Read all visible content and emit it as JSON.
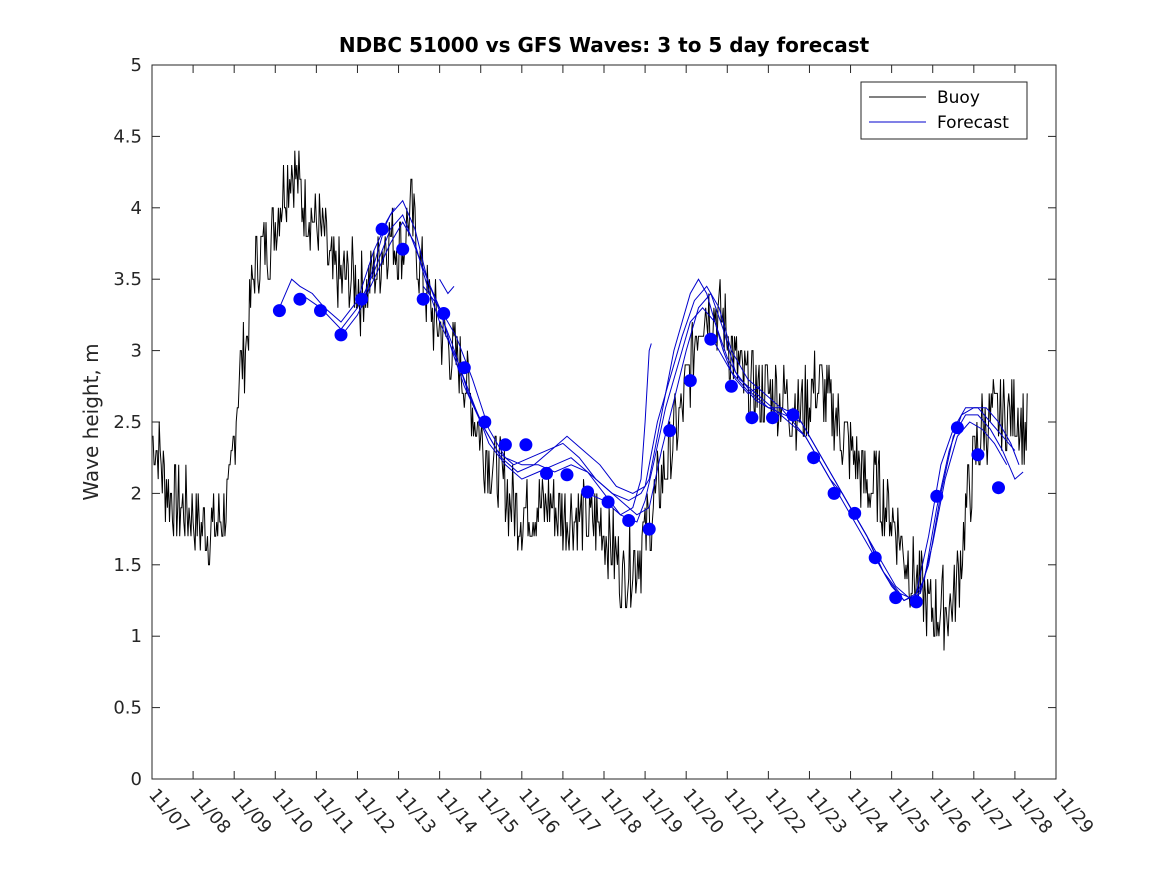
{
  "chart_data": {
    "type": "line",
    "title": "NDBC 51000 vs GFS Waves: 3 to 5 day forecast",
    "xlabel": "",
    "ylabel": "Wave height, m",
    "xlim": [
      0,
      22
    ],
    "ylim": [
      0,
      5
    ],
    "y_ticks": [
      0,
      0.5,
      1,
      1.5,
      2,
      2.5,
      3,
      3.5,
      4,
      4.5,
      5
    ],
    "y_tick_labels": [
      "0",
      "0.5",
      "1",
      "1.5",
      "2",
      "2.5",
      "3",
      "3.5",
      "4",
      "4.5",
      "5"
    ],
    "x_tick_labels": [
      "11/07",
      "11/08",
      "11/09",
      "11/10",
      "11/11",
      "11/12",
      "11/13",
      "11/14",
      "11/15",
      "11/16",
      "11/17",
      "11/18",
      "11/19",
      "11/20",
      "11/21",
      "11/22",
      "11/23",
      "11/24",
      "11/25",
      "11/26",
      "11/27",
      "11/28",
      "11/29"
    ],
    "x_unit": "days since 11/07",
    "legend": {
      "position": "top-right",
      "entries": [
        "Buoy",
        "Forecast"
      ]
    },
    "colors": {
      "buoy": "#000000",
      "forecast": "#0000cc",
      "markers": "#0000ff"
    },
    "buoy_anchors": [
      [
        0,
        2.4
      ],
      [
        0.15,
        2.3
      ],
      [
        0.3,
        2.1
      ],
      [
        0.5,
        1.95
      ],
      [
        0.8,
        1.9
      ],
      [
        1.1,
        1.8
      ],
      [
        1.4,
        1.75
      ],
      [
        1.7,
        1.8
      ],
      [
        1.9,
        2.0
      ],
      [
        2.0,
        2.4
      ],
      [
        2.1,
        2.8
      ],
      [
        2.25,
        3.0
      ],
      [
        2.4,
        3.3
      ],
      [
        2.5,
        3.6
      ],
      [
        2.7,
        3.7
      ],
      [
        2.9,
        3.8
      ],
      [
        3.1,
        4.0
      ],
      [
        3.25,
        4.2
      ],
      [
        3.4,
        4.3
      ],
      [
        3.6,
        4.1
      ],
      [
        3.8,
        4.0
      ],
      [
        4.0,
        3.9
      ],
      [
        4.2,
        3.8
      ],
      [
        4.4,
        3.5
      ],
      [
        4.7,
        3.5
      ],
      [
        4.9,
        3.5
      ],
      [
        5.1,
        3.4
      ],
      [
        5.3,
        3.5
      ],
      [
        5.5,
        3.6
      ],
      [
        5.7,
        3.8
      ],
      [
        5.9,
        3.8
      ],
      [
        6.1,
        3.7
      ],
      [
        6.3,
        4.0
      ],
      [
        6.5,
        3.6
      ],
      [
        6.7,
        3.4
      ],
      [
        6.9,
        3.2
      ],
      [
        7.1,
        3.1
      ],
      [
        7.3,
        3.0
      ],
      [
        7.5,
        2.9
      ],
      [
        7.7,
        2.7
      ],
      [
        7.9,
        2.5
      ],
      [
        8.1,
        2.3
      ],
      [
        8.3,
        2.2
      ],
      [
        8.5,
        2.1
      ],
      [
        8.7,
        1.95
      ],
      [
        8.9,
        1.85
      ],
      [
        9.1,
        1.9
      ],
      [
        9.4,
        1.9
      ],
      [
        9.7,
        1.9
      ],
      [
        10.0,
        1.85
      ],
      [
        10.3,
        1.85
      ],
      [
        10.6,
        1.8
      ],
      [
        10.9,
        1.8
      ],
      [
        11.1,
        1.7
      ],
      [
        11.3,
        1.55
      ],
      [
        11.45,
        1.4
      ],
      [
        11.6,
        1.5
      ],
      [
        11.75,
        1.55
      ],
      [
        11.9,
        1.6
      ],
      [
        12.1,
        1.8
      ],
      [
        12.3,
        2.0
      ],
      [
        12.5,
        2.2
      ],
      [
        12.7,
        2.4
      ],
      [
        12.9,
        2.6
      ],
      [
        13.1,
        2.9
      ],
      [
        13.3,
        3.2
      ],
      [
        13.5,
        3.3
      ],
      [
        13.7,
        3.3
      ],
      [
        13.9,
        3.2
      ],
      [
        14.1,
        3.0
      ],
      [
        14.3,
        2.85
      ],
      [
        14.5,
        2.75
      ],
      [
        14.8,
        2.7
      ],
      [
        15.1,
        2.7
      ],
      [
        15.4,
        2.65
      ],
      [
        15.7,
        2.6
      ],
      [
        15.9,
        2.6
      ],
      [
        16.1,
        2.75
      ],
      [
        16.3,
        2.7
      ],
      [
        16.5,
        2.6
      ],
      [
        16.7,
        2.5
      ],
      [
        16.9,
        2.35
      ],
      [
        17.1,
        2.25
      ],
      [
        17.3,
        2.1
      ],
      [
        17.5,
        2.05
      ],
      [
        17.7,
        2.0
      ],
      [
        17.9,
        1.9
      ],
      [
        18.1,
        1.8
      ],
      [
        18.3,
        1.6
      ],
      [
        18.5,
        1.45
      ],
      [
        18.7,
        1.3
      ],
      [
        18.9,
        1.2
      ],
      [
        19.1,
        1.2
      ],
      [
        19.3,
        1.2
      ],
      [
        19.5,
        1.25
      ],
      [
        19.65,
        1.5
      ],
      [
        19.8,
        1.85
      ],
      [
        20.0,
        2.2
      ],
      [
        20.2,
        2.45
      ],
      [
        20.4,
        2.55
      ],
      [
        20.6,
        2.5
      ],
      [
        20.8,
        2.55
      ],
      [
        21.0,
        2.6
      ],
      [
        21.15,
        2.5
      ],
      [
        21.3,
        2.4
      ]
    ],
    "forecast_points": [
      [
        3.1,
        3.28
      ],
      [
        3.6,
        3.36
      ],
      [
        4.1,
        3.28
      ],
      [
        4.6,
        3.11
      ],
      [
        5.1,
        3.36
      ],
      [
        5.6,
        3.85
      ],
      [
        6.1,
        3.71
      ],
      [
        6.6,
        3.36
      ],
      [
        7.1,
        3.26
      ],
      [
        7.6,
        2.88
      ],
      [
        8.1,
        2.5
      ],
      [
        8.6,
        2.34
      ],
      [
        9.1,
        2.34
      ],
      [
        9.6,
        2.14
      ],
      [
        10.1,
        2.13
      ],
      [
        10.6,
        2.01
      ],
      [
        11.1,
        1.94
      ],
      [
        11.6,
        1.81
      ],
      [
        12.1,
        1.75
      ],
      [
        12.6,
        2.44
      ],
      [
        13.1,
        2.79
      ],
      [
        13.6,
        3.08
      ],
      [
        14.1,
        2.75
      ],
      [
        14.6,
        2.53
      ],
      [
        15.1,
        2.53
      ],
      [
        15.6,
        2.55
      ],
      [
        16.1,
        2.25
      ],
      [
        16.6,
        2.0
      ],
      [
        17.1,
        1.86
      ],
      [
        17.6,
        1.55
      ],
      [
        18.1,
        1.27
      ],
      [
        18.6,
        1.24
      ],
      [
        19.1,
        1.98
      ],
      [
        19.6,
        2.46
      ],
      [
        20.1,
        2.27
      ],
      [
        20.6,
        2.04
      ]
    ],
    "forecast_lines": [
      [
        [
          3.1,
          3.3
        ],
        [
          3.4,
          3.5
        ],
        [
          3.6,
          3.45
        ],
        [
          3.9,
          3.4
        ],
        [
          4.2,
          3.3
        ],
        [
          4.6,
          3.2
        ],
        [
          5.0,
          3.35
        ],
        [
          5.4,
          3.7
        ],
        [
          5.8,
          3.95
        ],
        [
          6.1,
          4.05
        ],
        [
          6.4,
          3.85
        ],
        [
          6.7,
          3.5
        ],
        [
          7.0,
          3.3
        ],
        [
          7.3,
          3.0
        ],
        [
          7.6,
          2.75
        ],
        [
          8.0,
          2.5
        ],
        [
          8.4,
          2.3
        ],
        [
          8.8,
          2.2
        ],
        [
          9.2,
          2.25
        ],
        [
          9.6,
          2.3
        ],
        [
          10.0,
          2.35
        ],
        [
          10.4,
          2.25
        ],
        [
          10.8,
          2.1
        ],
        [
          11.2,
          2.0
        ],
        [
          11.6,
          1.95
        ],
        [
          11.9,
          2.0
        ],
        [
          12.1,
          2.1
        ],
        [
          12.3,
          2.4
        ],
        [
          12.5,
          2.7
        ],
        [
          12.7,
          3.0
        ],
        [
          12.9,
          3.2
        ],
        [
          13.1,
          3.4
        ],
        [
          13.3,
          3.5
        ],
        [
          13.5,
          3.4
        ],
        [
          13.7,
          3.2
        ],
        [
          13.9,
          3.0
        ],
        [
          14.1,
          2.85
        ],
        [
          14.4,
          2.75
        ],
        [
          14.7,
          2.65
        ],
        [
          15.0,
          2.6
        ],
        [
          15.3,
          2.6
        ],
        [
          15.6,
          2.5
        ],
        [
          15.9,
          2.4
        ],
        [
          16.2,
          2.25
        ],
        [
          16.5,
          2.1
        ],
        [
          16.8,
          2.0
        ],
        [
          17.1,
          1.85
        ],
        [
          17.4,
          1.7
        ],
        [
          17.7,
          1.5
        ],
        [
          18.0,
          1.35
        ],
        [
          18.3,
          1.25
        ],
        [
          18.6,
          1.3
        ],
        [
          18.9,
          1.7
        ],
        [
          19.2,
          2.2
        ],
        [
          19.5,
          2.45
        ],
        [
          19.8,
          2.6
        ],
        [
          20.1,
          2.6
        ],
        [
          20.4,
          2.5
        ],
        [
          20.7,
          2.4
        ],
        [
          21.0,
          2.3
        ]
      ],
      [
        [
          3.6,
          3.4
        ],
        [
          4.1,
          3.3
        ],
        [
          4.6,
          3.15
        ],
        [
          5.0,
          3.3
        ],
        [
          5.4,
          3.55
        ],
        [
          5.8,
          3.85
        ],
        [
          6.1,
          3.95
        ],
        [
          6.5,
          3.65
        ],
        [
          6.9,
          3.35
        ],
        [
          7.3,
          3.05
        ],
        [
          7.7,
          2.7
        ],
        [
          8.1,
          2.45
        ],
        [
          8.5,
          2.25
        ],
        [
          8.9,
          2.15
        ],
        [
          9.3,
          2.2
        ],
        [
          9.7,
          2.3
        ],
        [
          10.1,
          2.4
        ],
        [
          10.5,
          2.3
        ],
        [
          10.9,
          2.2
        ],
        [
          11.3,
          2.05
        ],
        [
          11.7,
          2.0
        ],
        [
          12.0,
          2.05
        ],
        [
          12.3,
          2.5
        ],
        [
          12.6,
          2.8
        ],
        [
          12.9,
          3.1
        ],
        [
          13.2,
          3.35
        ],
        [
          13.5,
          3.45
        ],
        [
          13.8,
          3.3
        ],
        [
          14.1,
          3.0
        ],
        [
          14.5,
          2.8
        ],
        [
          14.9,
          2.7
        ],
        [
          15.3,
          2.6
        ],
        [
          15.7,
          2.55
        ],
        [
          16.1,
          2.35
        ],
        [
          16.5,
          2.15
        ],
        [
          16.9,
          1.95
        ],
        [
          17.3,
          1.75
        ],
        [
          17.7,
          1.55
        ],
        [
          18.1,
          1.35
        ],
        [
          18.5,
          1.25
        ],
        [
          18.8,
          1.4
        ],
        [
          19.1,
          1.9
        ],
        [
          19.4,
          2.3
        ],
        [
          19.7,
          2.55
        ],
        [
          20.0,
          2.6
        ],
        [
          20.3,
          2.6
        ],
        [
          20.6,
          2.5
        ],
        [
          20.9,
          2.35
        ],
        [
          21.1,
          2.2
        ]
      ],
      [
        [
          4.6,
          3.1
        ],
        [
          5.0,
          3.25
        ],
        [
          5.4,
          3.5
        ],
        [
          5.8,
          3.75
        ],
        [
          6.1,
          3.9
        ],
        [
          6.4,
          3.75
        ],
        [
          6.7,
          3.45
        ],
        [
          7.0,
          3.2
        ],
        [
          7.4,
          2.95
        ],
        [
          7.8,
          2.65
        ],
        [
          8.2,
          2.35
        ],
        [
          8.6,
          2.2
        ],
        [
          9.0,
          2.1
        ],
        [
          9.4,
          2.15
        ],
        [
          9.8,
          2.2
        ],
        [
          10.2,
          2.25
        ],
        [
          10.6,
          2.15
        ],
        [
          11.0,
          2.05
        ],
        [
          11.4,
          1.95
        ],
        [
          11.8,
          1.85
        ],
        [
          12.1,
          1.9
        ],
        [
          12.4,
          2.3
        ],
        [
          12.7,
          2.65
        ],
        [
          13.0,
          3.0
        ],
        [
          13.3,
          3.3
        ],
        [
          13.6,
          3.4
        ],
        [
          13.9,
          3.15
        ],
        [
          14.2,
          2.85
        ],
        [
          14.6,
          2.7
        ],
        [
          15.0,
          2.6
        ],
        [
          15.4,
          2.55
        ],
        [
          15.8,
          2.5
        ],
        [
          16.2,
          2.3
        ],
        [
          16.6,
          2.1
        ],
        [
          17.0,
          1.9
        ],
        [
          17.4,
          1.7
        ],
        [
          17.8,
          1.45
        ],
        [
          18.2,
          1.3
        ],
        [
          18.6,
          1.25
        ],
        [
          18.9,
          1.5
        ],
        [
          19.2,
          2.0
        ],
        [
          19.5,
          2.4
        ],
        [
          19.8,
          2.55
        ],
        [
          20.1,
          2.55
        ],
        [
          20.4,
          2.45
        ],
        [
          20.7,
          2.3
        ],
        [
          21.0,
          2.1
        ],
        [
          21.2,
          2.15
        ]
      ],
      [
        [
          6.6,
          3.45
        ],
        [
          7.0,
          3.3
        ],
        [
          7.4,
          3.1
        ],
        [
          7.8,
          2.8
        ],
        [
          8.2,
          2.45
        ],
        [
          8.6,
          2.25
        ],
        [
          9.0,
          2.2
        ],
        [
          9.4,
          2.2
        ],
        [
          9.8,
          2.15
        ],
        [
          10.2,
          2.2
        ],
        [
          10.6,
          2.15
        ],
        [
          11.0,
          2.0
        ],
        [
          11.4,
          1.85
        ],
        [
          11.8,
          1.8
        ],
        [
          12.0,
          1.95
        ],
        [
          12.2,
          2.2
        ],
        [
          12.5,
          2.6
        ],
        [
          12.8,
          2.9
        ],
        [
          13.1,
          3.2
        ],
        [
          13.4,
          3.3
        ],
        [
          13.7,
          3.2
        ],
        [
          14.0,
          2.95
        ],
        [
          14.3,
          2.8
        ],
        [
          14.7,
          2.7
        ],
        [
          15.1,
          2.6
        ],
        [
          15.5,
          2.5
        ],
        [
          15.9,
          2.4
        ],
        [
          16.3,
          2.2
        ],
        [
          16.7,
          2.0
        ],
        [
          17.1,
          1.8
        ],
        [
          17.5,
          1.6
        ],
        [
          17.9,
          1.4
        ],
        [
          18.3,
          1.25
        ],
        [
          18.7,
          1.3
        ],
        [
          19.0,
          1.65
        ],
        [
          19.3,
          2.1
        ],
        [
          19.6,
          2.4
        ],
        [
          19.9,
          2.5
        ],
        [
          20.2,
          2.45
        ],
        [
          20.5,
          2.35
        ],
        [
          20.8,
          2.2
        ]
      ],
      [
        [
          10.6,
          2.0
        ],
        [
          11.0,
          1.95
        ],
        [
          11.4,
          1.85
        ],
        [
          11.7,
          1.9
        ],
        [
          11.9,
          2.1
        ],
        [
          12.0,
          2.5
        ],
        [
          12.1,
          3.0
        ],
        [
          12.15,
          3.05
        ]
      ],
      [
        [
          13.6,
          3.1
        ],
        [
          13.9,
          2.95
        ],
        [
          14.2,
          2.8
        ],
        [
          14.5,
          2.7
        ],
        [
          14.8,
          2.75
        ]
      ],
      [
        [
          5.1,
          3.3
        ],
        [
          5.4,
          3.6
        ],
        [
          5.7,
          3.9
        ],
        [
          5.9,
          4.0
        ]
      ],
      [
        [
          7.0,
          3.5
        ],
        [
          7.2,
          3.4
        ],
        [
          7.35,
          3.45
        ]
      ]
    ]
  }
}
